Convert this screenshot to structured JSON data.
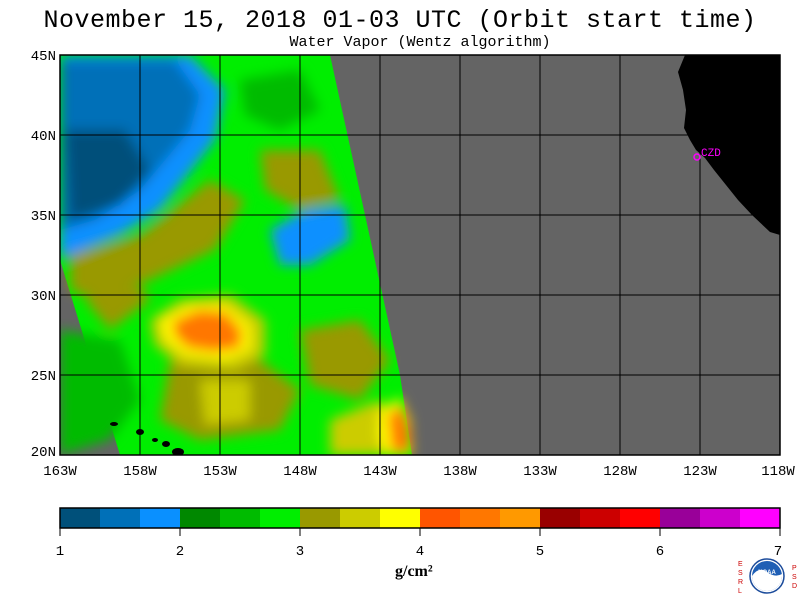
{
  "header": {
    "title": "November 15, 2018  01-03 UTC  (Orbit start time)",
    "subtitle": "Water Vapor (Wentz algorithm)"
  },
  "map": {
    "lat_labels": [
      "45N",
      "40N",
      "35N",
      "30N",
      "25N",
      "20N"
    ],
    "lon_labels": [
      "163W",
      "158W",
      "153W",
      "148W",
      "143W",
      "138W",
      "133W",
      "128W",
      "123W",
      "118W"
    ],
    "station_label": "CZD",
    "colors": {
      "no_data": "#646464",
      "land": "#000000",
      "station": "#ff00ff"
    }
  },
  "colorbar": {
    "ticks": [
      "1",
      "2",
      "3",
      "4",
      "5",
      "6",
      "7"
    ],
    "units": "g/cm²",
    "colors": [
      "#00507a",
      "#0070b8",
      "#0a90ff",
      "#008800",
      "#00bb00",
      "#00ee00",
      "#999900",
      "#cccc00",
      "#ffff00",
      "#ff5500",
      "#ff7700",
      "#ff9900",
      "#990000",
      "#cc0000",
      "#ff0000",
      "#990099",
      "#cc00cc",
      "#ff00ff"
    ]
  },
  "logo": {
    "left_letters": "ESRL",
    "right_letters": "PSD",
    "center_text": "NOAA"
  }
}
